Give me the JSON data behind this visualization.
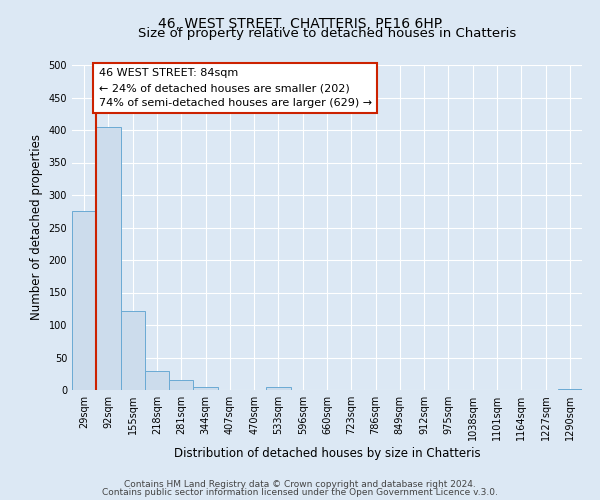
{
  "title": "46, WEST STREET, CHATTERIS, PE16 6HP",
  "subtitle": "Size of property relative to detached houses in Chatteris",
  "xlabel": "Distribution of detached houses by size in Chatteris",
  "ylabel": "Number of detached properties",
  "bar_labels": [
    "29sqm",
    "92sqm",
    "155sqm",
    "218sqm",
    "281sqm",
    "344sqm",
    "407sqm",
    "470sqm",
    "533sqm",
    "596sqm",
    "660sqm",
    "723sqm",
    "786sqm",
    "849sqm",
    "912sqm",
    "975sqm",
    "1038sqm",
    "1101sqm",
    "1164sqm",
    "1227sqm",
    "1290sqm"
  ],
  "bar_values": [
    275,
    405,
    122,
    29,
    15,
    5,
    0,
    0,
    5,
    0,
    0,
    0,
    0,
    0,
    0,
    0,
    0,
    0,
    0,
    0,
    2
  ],
  "bar_color": "#ccdcec",
  "bar_edge_color": "#6aaad4",
  "vline_color": "#cc2200",
  "annotation_title": "46 WEST STREET: 84sqm",
  "annotation_line1": "← 24% of detached houses are smaller (202)",
  "annotation_line2": "74% of semi-detached houses are larger (629) →",
  "annotation_box_edge": "#cc2200",
  "ylim": [
    0,
    500
  ],
  "yticks": [
    0,
    50,
    100,
    150,
    200,
    250,
    300,
    350,
    400,
    450,
    500
  ],
  "footer1": "Contains HM Land Registry data © Crown copyright and database right 2024.",
  "footer2": "Contains public sector information licensed under the Open Government Licence v.3.0.",
  "bg_color": "#dce8f4",
  "plot_bg_color": "#dce8f4",
  "grid_color": "#ffffff",
  "title_fontsize": 10,
  "subtitle_fontsize": 9.5,
  "axis_label_fontsize": 8.5,
  "tick_fontsize": 7,
  "annotation_fontsize": 8,
  "footer_fontsize": 6.5
}
